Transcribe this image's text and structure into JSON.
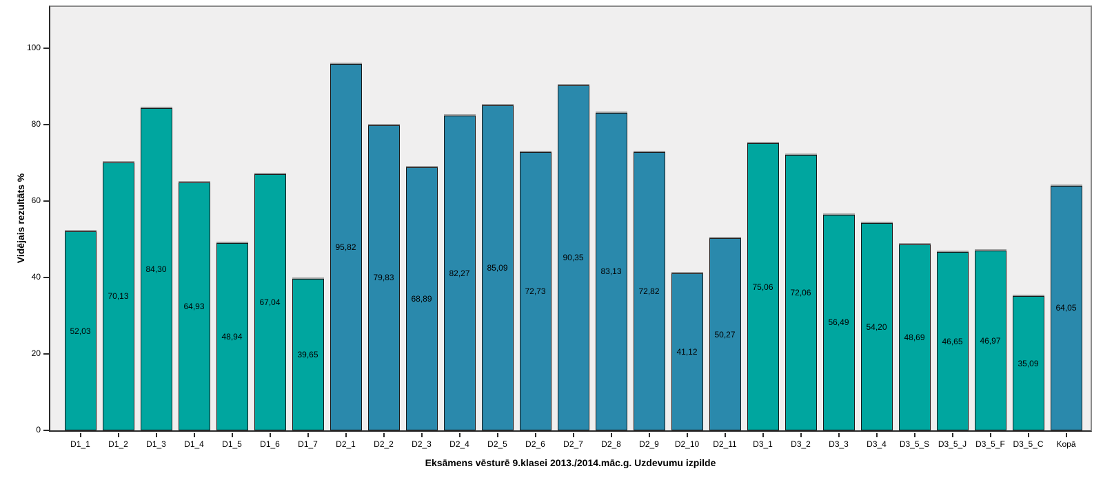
{
  "chart_data": {
    "type": "bar",
    "title": "",
    "xlabel": "Eksāmens vēsturē 9.klasei 2013./2014.māc.g. Uzdevumu izpilde",
    "ylabel": "Vidējais rezultāts %",
    "ylim": [
      0,
      110.8
    ],
    "yticks": [
      0,
      20,
      40,
      60,
      80,
      100
    ],
    "grid": false,
    "legend_position": "none",
    "categories": [
      "D1_1",
      "D1_2",
      "D1_3",
      "D1_4",
      "D1_5",
      "D1_6",
      "D1_7",
      "D2_1",
      "D2_2",
      "D2_3",
      "D2_4",
      "D2_5",
      "D2_6",
      "D2_7",
      "D2_8",
      "D2_9",
      "D2_10",
      "D2_11",
      "D3_1",
      "D3_2",
      "D3_3",
      "D3_4",
      "D3_5_S",
      "D3_5_J",
      "D3_5_F",
      "D3_5_C",
      "Kopā"
    ],
    "values": [
      52.03,
      70.13,
      84.3,
      64.93,
      48.94,
      67.04,
      39.65,
      95.82,
      79.83,
      68.89,
      82.27,
      85.09,
      72.73,
      90.35,
      83.13,
      72.82,
      41.12,
      50.27,
      75.06,
      72.06,
      56.49,
      54.2,
      48.69,
      46.65,
      46.97,
      35.09,
      64.05
    ],
    "display_values": [
      "52,03",
      "70,13",
      "84,30",
      "64,93",
      "48,94",
      "67,04",
      "39,65",
      "95,82",
      "79,83",
      "68,89",
      "82,27",
      "85,09",
      "72,73",
      "90,35",
      "83,13",
      "72,82",
      "41,12",
      "50,27",
      "75,06",
      "72,06",
      "56,49",
      "54,20",
      "48,69",
      "46,65",
      "46,97",
      "35,09",
      "64,05"
    ],
    "bar_color_keys": [
      "teal",
      "teal",
      "teal",
      "teal",
      "teal",
      "teal",
      "teal",
      "blue",
      "blue",
      "blue",
      "blue",
      "blue",
      "blue",
      "blue",
      "blue",
      "blue",
      "blue",
      "blue",
      "teal",
      "teal",
      "teal",
      "teal",
      "teal",
      "teal",
      "teal",
      "teal",
      "blue"
    ],
    "colors": {
      "teal": "#00A69F",
      "blue": "#2A89AC",
      "plot_background": "#F0EFEF",
      "frame_gray": "#8A8A8A",
      "axis_dark": "#2B2B2B",
      "bar_border": "#1A1A1A",
      "label_text": "#000000"
    }
  }
}
